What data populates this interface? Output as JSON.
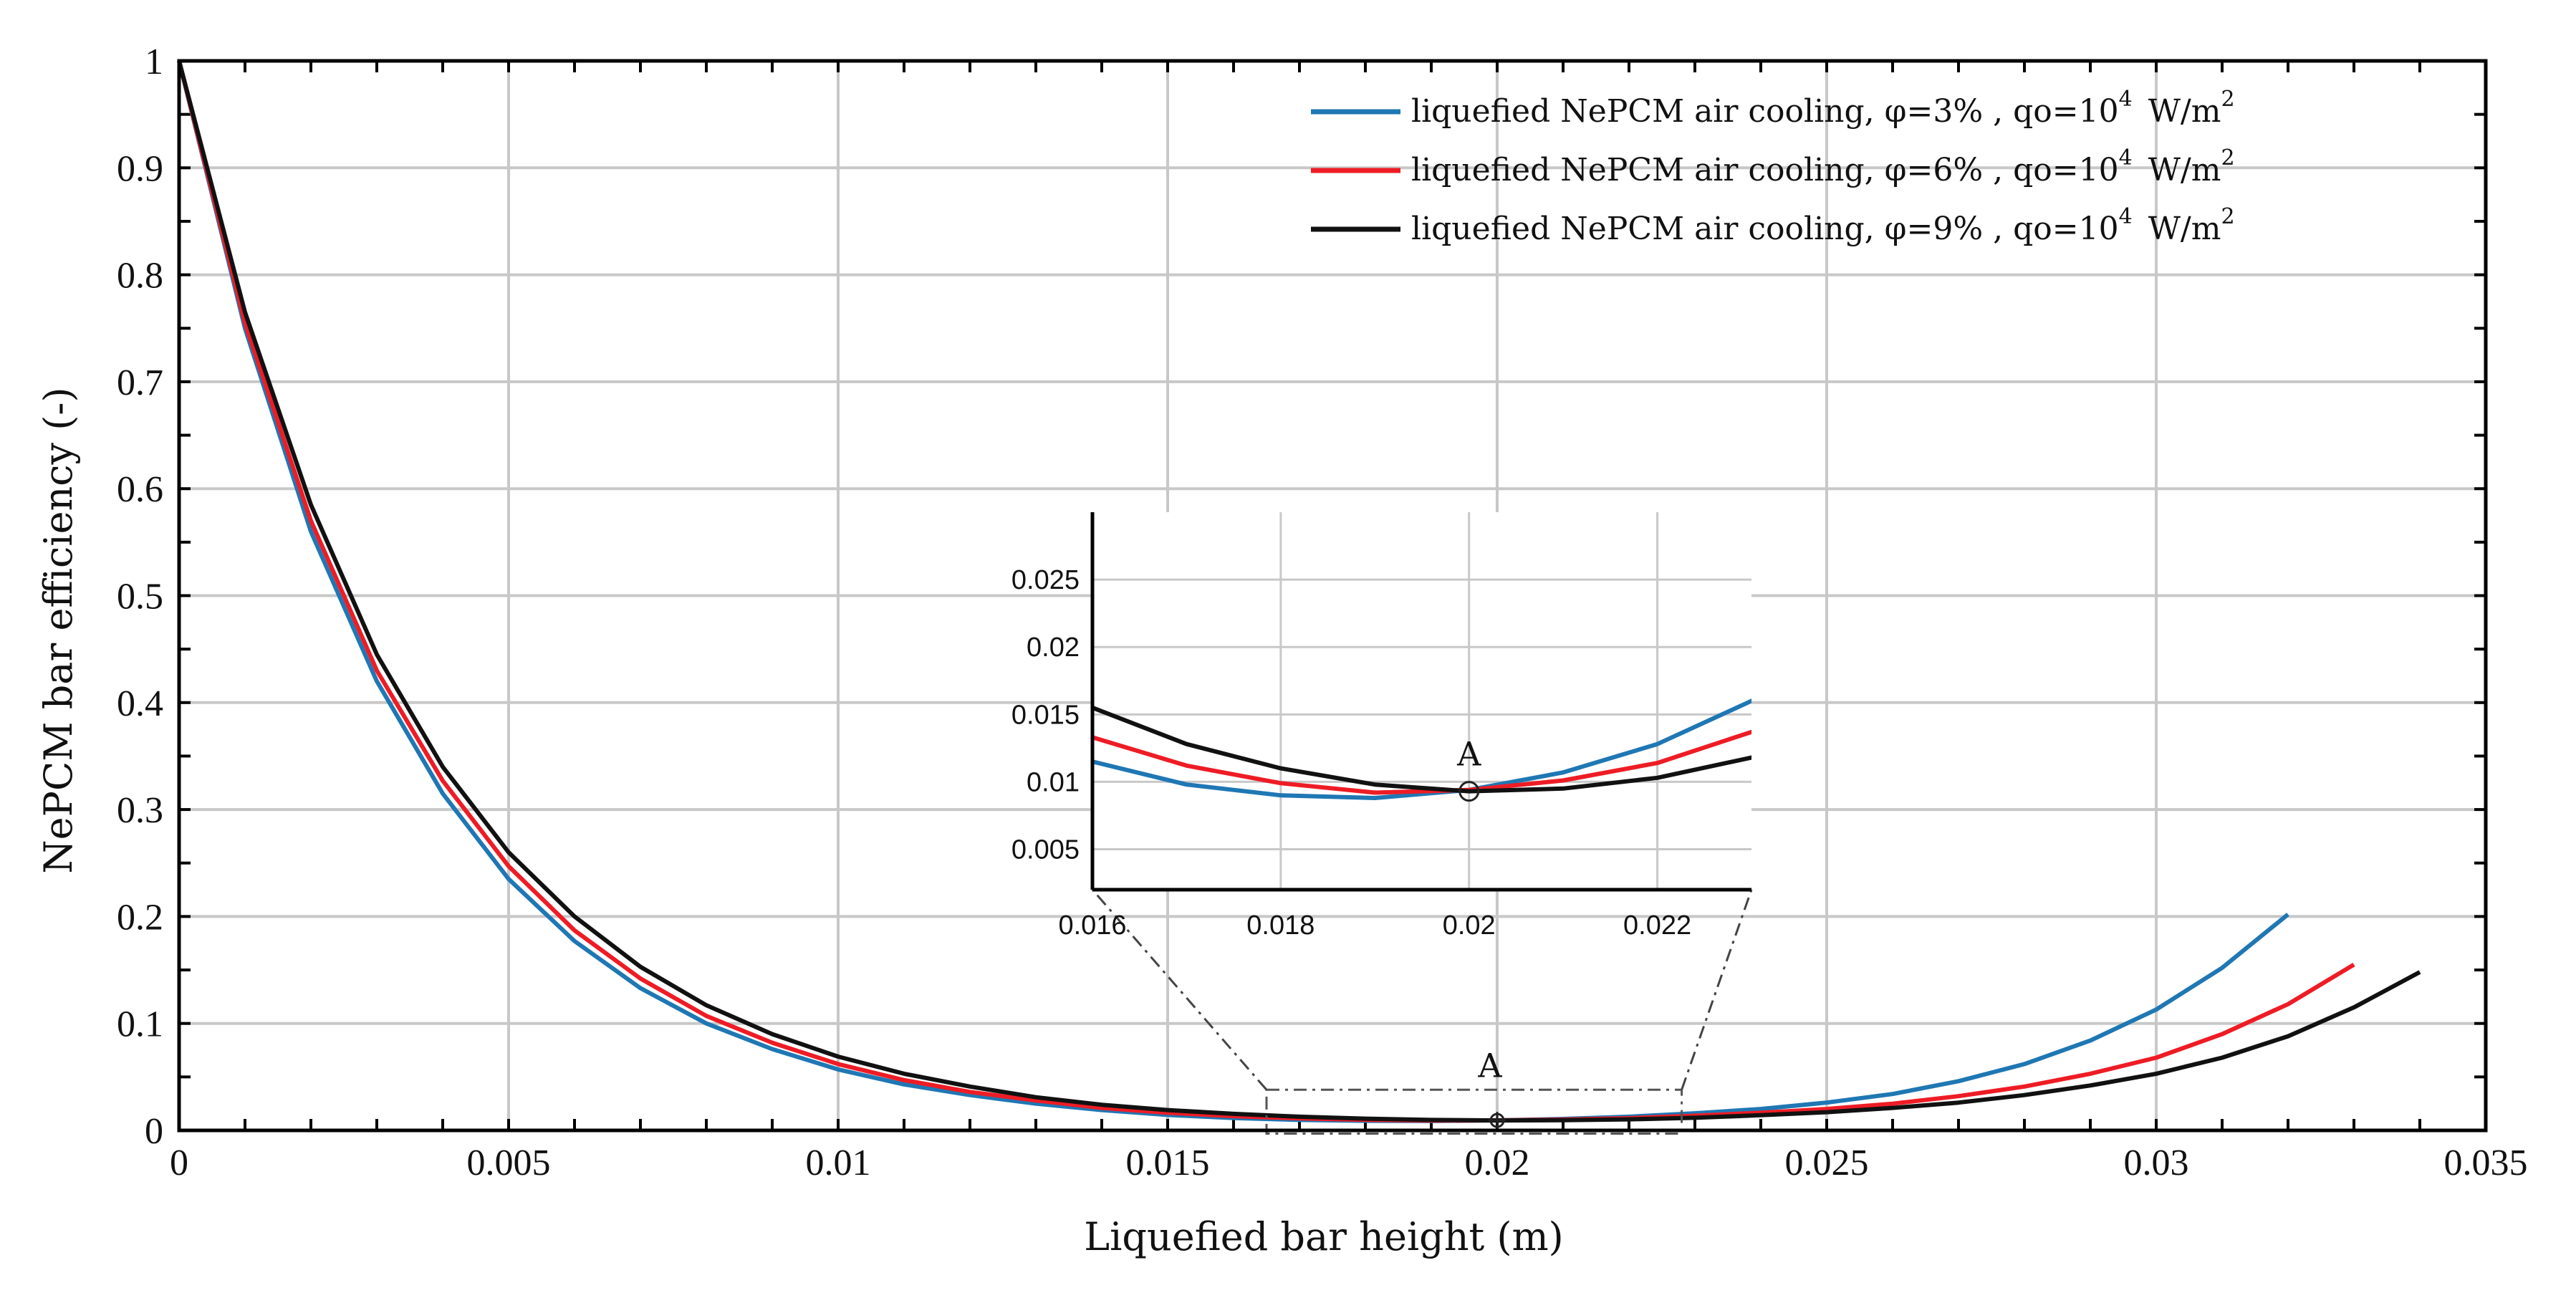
{
  "chart_data": {
    "type": "line",
    "xlabel": "Liquefied bar height (m)",
    "ylabel": "NePCM bar efficiency (-)",
    "xlim": [
      0,
      0.035
    ],
    "ylim": [
      0,
      1
    ],
    "grid": true,
    "x_ticks": [
      "0",
      "0.005",
      "0.01",
      "0.015",
      "0.02",
      "0.025",
      "0.03",
      "0.035"
    ],
    "y_ticks": [
      "0",
      "0.1",
      "0.2",
      "0.3",
      "0.4",
      "0.5",
      "0.6",
      "0.7",
      "0.8",
      "0.9",
      "1"
    ],
    "legend_position": "top-right",
    "series": [
      {
        "name": "liquefied NePCM air cooling, φ=3% , qo=10",
        "name_sup": "4",
        "units": "W/m",
        "units_sup": "2",
        "color": "#1f77b4",
        "x": [
          0,
          0.001,
          0.002,
          0.003,
          0.004,
          0.005,
          0.006,
          0.007,
          0.008,
          0.009,
          0.01,
          0.011,
          0.012,
          0.013,
          0.014,
          0.015,
          0.016,
          0.017,
          0.018,
          0.019,
          0.02,
          0.021,
          0.022,
          0.023,
          0.024,
          0.025,
          0.026,
          0.027,
          0.028,
          0.029,
          0.03,
          0.031,
          0.032
        ],
        "y": [
          1.0,
          0.75,
          0.56,
          0.42,
          0.315,
          0.235,
          0.177,
          0.133,
          0.1,
          0.076,
          0.057,
          0.043,
          0.033,
          0.025,
          0.019,
          0.0145,
          0.0115,
          0.0098,
          0.009,
          0.0088,
          0.0094,
          0.0107,
          0.0128,
          0.016,
          0.02,
          0.026,
          0.034,
          0.046,
          0.062,
          0.084,
          0.113,
          0.152,
          0.202
        ]
      },
      {
        "name": "liquefied NePCM air cooling, φ=6% , qo=10",
        "name_sup": "4",
        "units": "W/m",
        "units_sup": "2",
        "color": "#ee1c25",
        "x": [
          0,
          0.001,
          0.002,
          0.003,
          0.004,
          0.005,
          0.006,
          0.007,
          0.008,
          0.009,
          0.01,
          0.011,
          0.012,
          0.013,
          0.014,
          0.015,
          0.016,
          0.017,
          0.018,
          0.019,
          0.02,
          0.021,
          0.022,
          0.023,
          0.024,
          0.025,
          0.026,
          0.027,
          0.028,
          0.029,
          0.03,
          0.031,
          0.032,
          0.033
        ],
        "y": [
          1.0,
          0.755,
          0.57,
          0.43,
          0.327,
          0.247,
          0.187,
          0.142,
          0.107,
          0.082,
          0.062,
          0.047,
          0.036,
          0.028,
          0.021,
          0.0165,
          0.0133,
          0.0112,
          0.0099,
          0.0092,
          0.0094,
          0.0101,
          0.0114,
          0.0137,
          0.0165,
          0.02,
          0.025,
          0.032,
          0.041,
          0.053,
          0.068,
          0.09,
          0.118,
          0.155
        ]
      },
      {
        "name": "liquefied NePCM air cooling, φ=9% , qo=10",
        "name_sup": "4",
        "units": "W/m",
        "units_sup": "2",
        "color": "#111111",
        "x": [
          0,
          0.001,
          0.002,
          0.003,
          0.004,
          0.005,
          0.006,
          0.007,
          0.008,
          0.009,
          0.01,
          0.011,
          0.012,
          0.013,
          0.014,
          0.015,
          0.016,
          0.017,
          0.018,
          0.019,
          0.02,
          0.021,
          0.022,
          0.023,
          0.024,
          0.025,
          0.026,
          0.027,
          0.028,
          0.029,
          0.03,
          0.031,
          0.032,
          0.033,
          0.034
        ],
        "y": [
          1.0,
          0.765,
          0.585,
          0.445,
          0.34,
          0.26,
          0.2,
          0.153,
          0.117,
          0.09,
          0.069,
          0.053,
          0.041,
          0.031,
          0.024,
          0.019,
          0.0155,
          0.0128,
          0.011,
          0.0098,
          0.0093,
          0.0095,
          0.0103,
          0.0118,
          0.0142,
          0.017,
          0.021,
          0.026,
          0.033,
          0.042,
          0.053,
          0.068,
          0.088,
          0.115,
          0.148
        ]
      }
    ],
    "inset": {
      "xlim": [
        0.016,
        0.023
      ],
      "ylim": [
        0.002,
        0.03
      ],
      "x_ticks": [
        "0.016",
        "0.018",
        "0.02",
        "0.022"
      ],
      "y_ticks": [
        "0.005",
        "0.01",
        "0.015",
        "0.02",
        "0.025"
      ],
      "annotation": "A",
      "annotation_point": [
        0.02,
        0.0093
      ]
    },
    "main_annotation": "A",
    "zoom_box": {
      "x": [
        0.0165,
        0.0228
      ],
      "y": [
        -0.003,
        0.038
      ]
    }
  }
}
